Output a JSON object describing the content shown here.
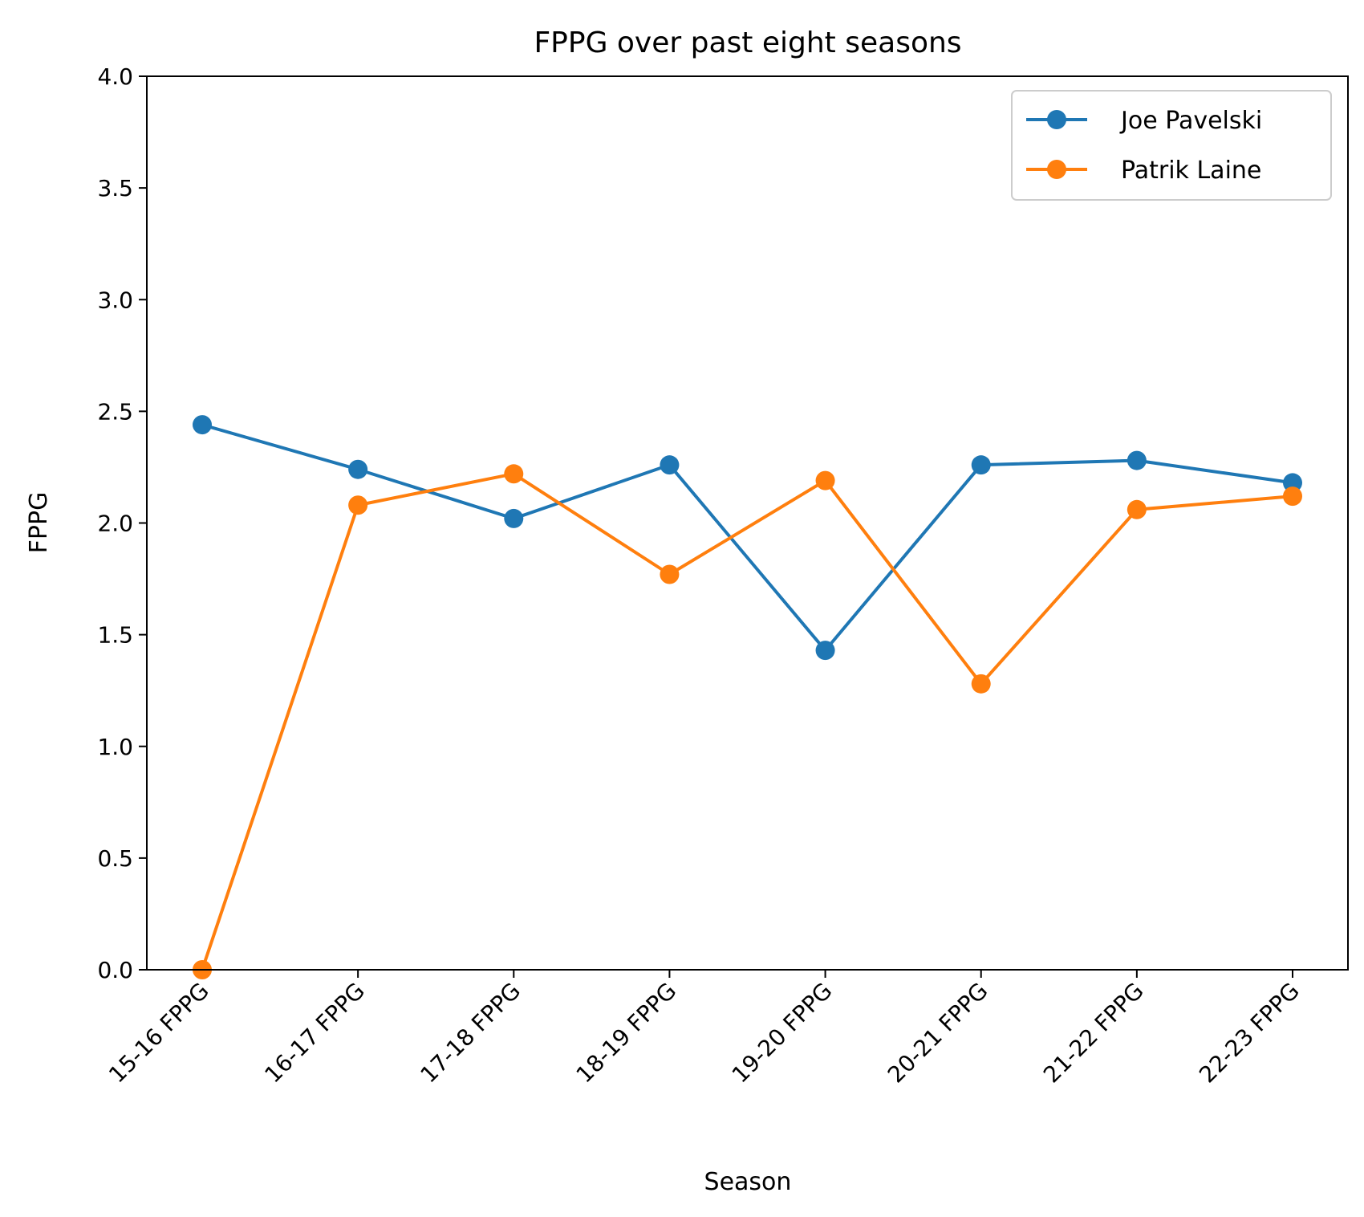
{
  "chart_data": {
    "type": "line",
    "title": "FPPG over past eight seasons",
    "xlabel": "Season",
    "ylabel": "FPPG",
    "categories": [
      "15-16 FPPG",
      "16-17 FPPG",
      "17-18 FPPG",
      "18-19 FPPG",
      "19-20 FPPG",
      "20-21 FPPG",
      "21-22 FPPG",
      "22-23 FPPG"
    ],
    "ylim": [
      0.0,
      4.0
    ],
    "yticks": [
      "0.0",
      "0.5",
      "1.0",
      "1.5",
      "2.0",
      "2.5",
      "3.0",
      "3.5",
      "4.0"
    ],
    "grid": false,
    "legend_position": "top-right",
    "series": [
      {
        "name": "Joe Pavelski",
        "color": "#1f77b4",
        "marker": "circle",
        "values": [
          2.44,
          2.24,
          2.02,
          2.26,
          1.43,
          2.26,
          2.28,
          2.18
        ]
      },
      {
        "name": "Patrik Laine",
        "color": "#ff7f0e",
        "marker": "circle",
        "values": [
          0.0,
          2.08,
          2.22,
          1.77,
          2.19,
          1.28,
          2.06,
          2.12
        ]
      }
    ]
  }
}
